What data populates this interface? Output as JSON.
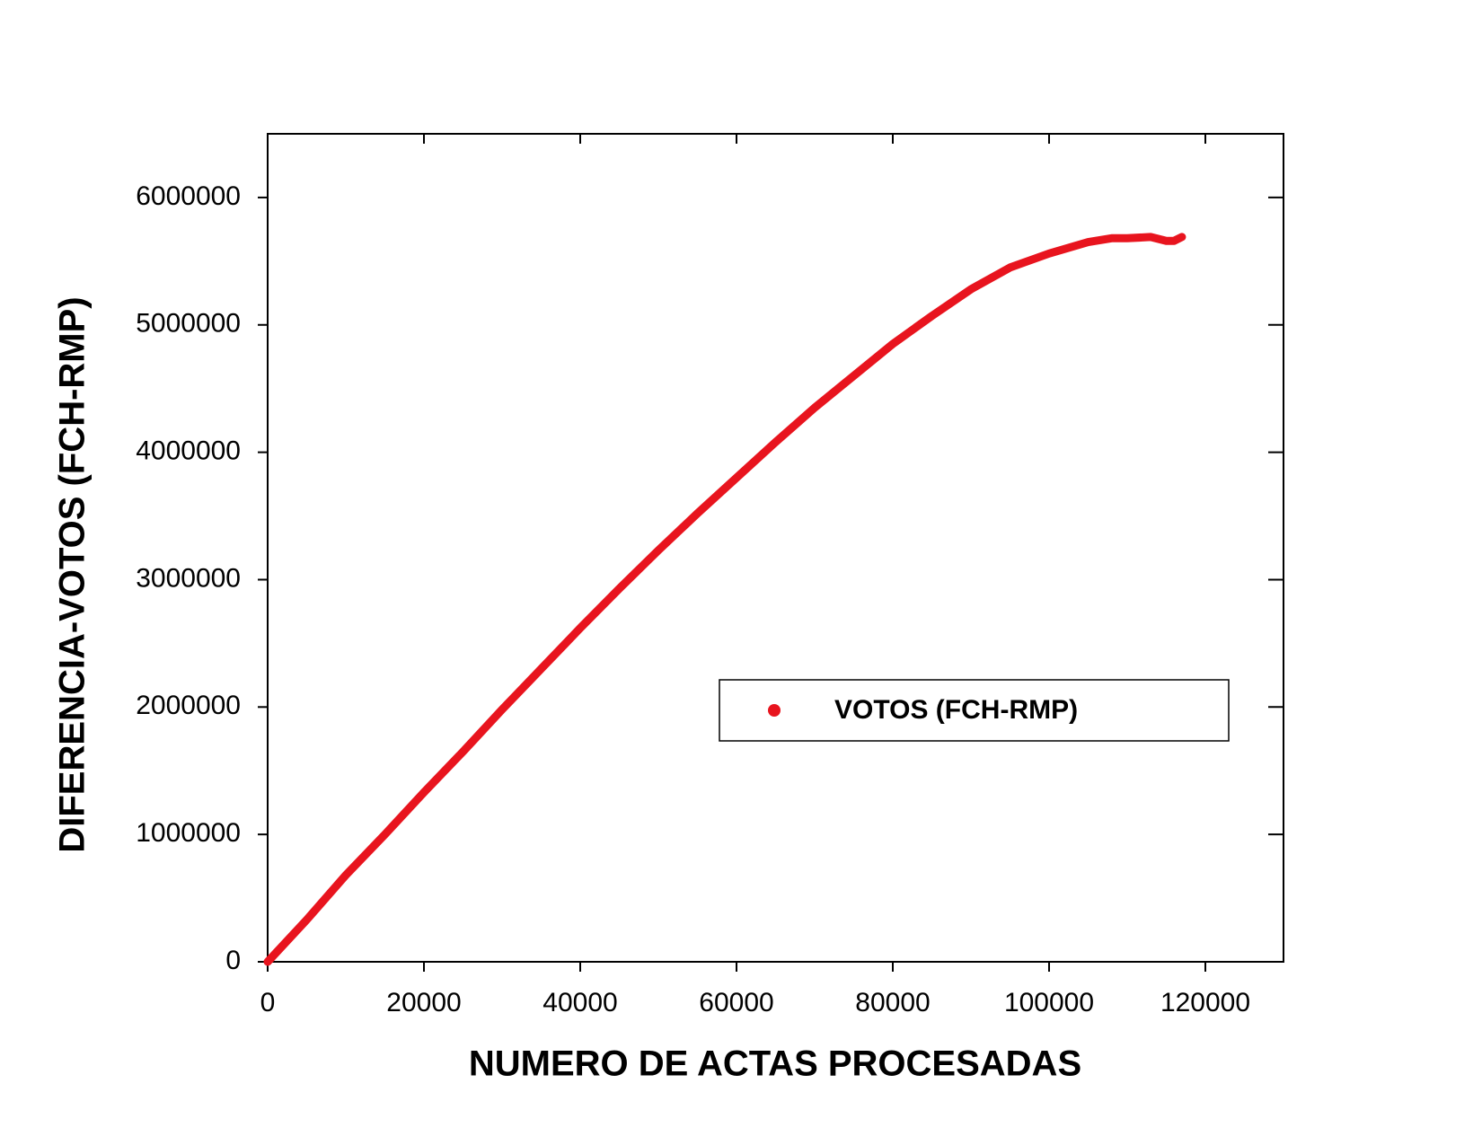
{
  "chart_data": {
    "type": "scatter",
    "xlabel": "NUMERO DE ACTAS PROCESADAS",
    "ylabel": "DIFERENCIA-VOTOS (FCH-RMP)",
    "series": [
      {
        "name": "VOTOS (FCH-RMP)",
        "color": "#e8141e",
        "x": [
          0,
          5000,
          10000,
          15000,
          20000,
          25000,
          30000,
          35000,
          40000,
          45000,
          50000,
          55000,
          60000,
          65000,
          70000,
          75000,
          80000,
          85000,
          90000,
          95000,
          100000,
          105000,
          108000,
          110000,
          113000,
          115000,
          116000,
          117000
        ],
        "values": [
          0,
          330000,
          680000,
          1000000,
          1330000,
          1650000,
          1980000,
          2300000,
          2620000,
          2930000,
          3230000,
          3520000,
          3800000,
          4080000,
          4350000,
          4600000,
          4850000,
          5070000,
          5280000,
          5450000,
          5560000,
          5650000,
          5680000,
          5680000,
          5690000,
          5660000,
          5660000,
          5690000
        ]
      }
    ],
    "xlim": [
      0,
      130000
    ],
    "xticks": [
      0,
      20000,
      40000,
      60000,
      80000,
      100000,
      120000
    ],
    "ylim": [
      0,
      6500000
    ],
    "yticks": [
      0,
      1000000,
      2000000,
      3000000,
      4000000,
      5000000,
      6000000
    ],
    "grid": false,
    "legend": "lower right"
  }
}
